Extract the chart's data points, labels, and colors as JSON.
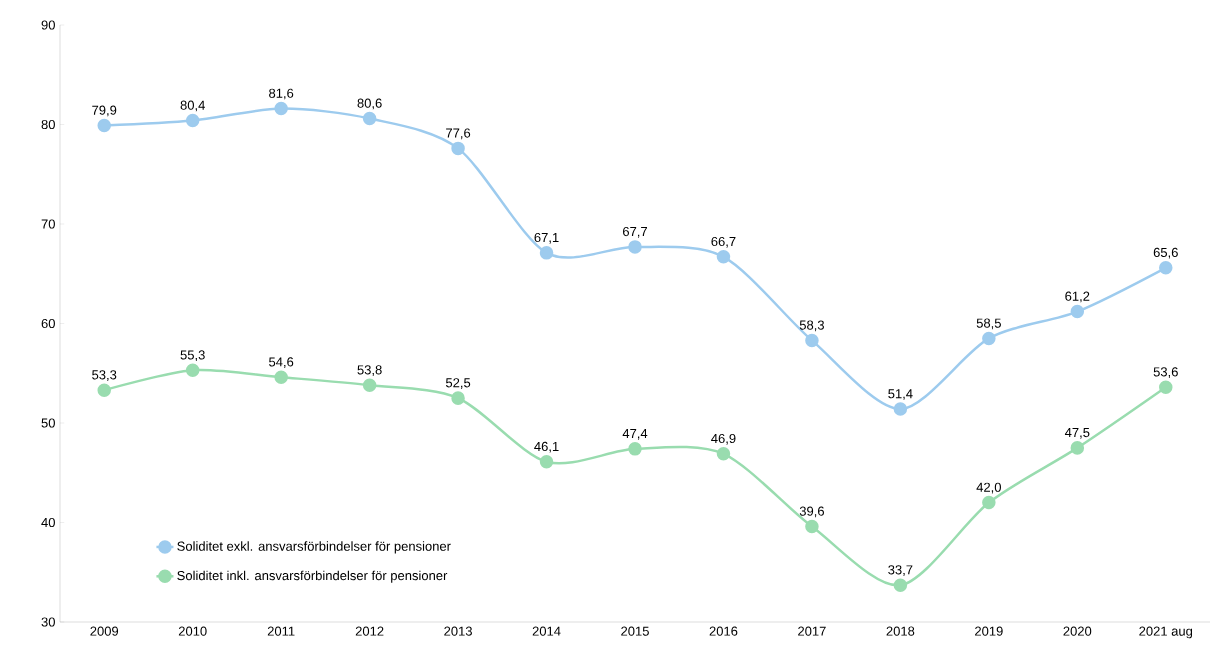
{
  "chart_data": {
    "type": "line",
    "categories": [
      "2009",
      "2010",
      "2011",
      "2012",
      "2013",
      "2014",
      "2015",
      "2016",
      "2017",
      "2018",
      "2019",
      "2020",
      "2021 aug"
    ],
    "series": [
      {
        "name": "Soliditet exkl. ansvarsförbindelser för pensioner",
        "color": "#9dcbee",
        "values": [
          79.9,
          80.4,
          81.6,
          80.6,
          77.6,
          67.1,
          67.7,
          66.7,
          58.3,
          51.4,
          58.5,
          61.2,
          65.6
        ],
        "value_labels": [
          "79,9",
          "80,4",
          "81,6",
          "80,6",
          "77,6",
          "67,1",
          "67,7",
          "66,7",
          "58,3",
          "51,4",
          "58,5",
          "61,2",
          "65,6"
        ]
      },
      {
        "name": "Soliditet inkl. ansvarsförbindelser för pensioner",
        "color": "#99dcaf",
        "values": [
          53.3,
          55.3,
          54.6,
          53.8,
          52.5,
          46.1,
          47.4,
          46.9,
          39.6,
          33.7,
          42.0,
          47.5,
          53.6
        ],
        "value_labels": [
          "53,3",
          "55,3",
          "54,6",
          "53,8",
          "52,5",
          "46,1",
          "47,4",
          "46,9",
          "39,6",
          "33,7",
          "42,0",
          "47,5",
          "53,6"
        ]
      }
    ],
    "ylim": [
      30,
      90
    ],
    "yticks": [
      30,
      40,
      50,
      60,
      70,
      80,
      90
    ],
    "grid": false,
    "legend": "bottom left",
    "marker": "circle",
    "line_style": "solid"
  }
}
